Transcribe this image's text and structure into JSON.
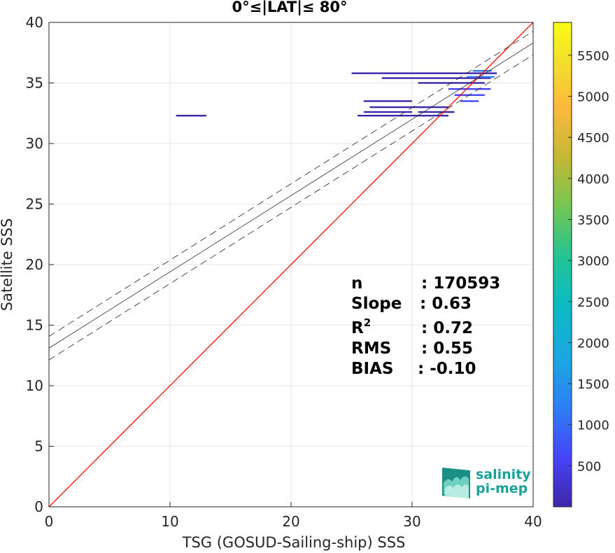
{
  "chart_data": {
    "type": "scatter",
    "title": "0°≤|LAT|≤ 80°",
    "xlabel": "TSG (GOSUD-Sailing-ship) SSS",
    "ylabel": "Satellite SSS",
    "xlim": [
      0,
      40
    ],
    "ylim": [
      0,
      40
    ],
    "xticks": [
      "0",
      "10",
      "20",
      "30",
      "40"
    ],
    "yticks": [
      "0",
      "5",
      "10",
      "15",
      "20",
      "25",
      "30",
      "35",
      "40"
    ],
    "grid": true,
    "density_points": [
      {
        "x": 25.0,
        "y": 35.8,
        "x2": 37.0,
        "count": 150
      },
      {
        "x": 27.5,
        "y": 35.4,
        "x2": 36.5,
        "count": 250
      },
      {
        "x": 30.5,
        "y": 35.0,
        "x2": 36.0,
        "count": 300
      },
      {
        "x": 33.0,
        "y": 34.5,
        "x2": 36.5,
        "count": 600
      },
      {
        "x": 33.5,
        "y": 34.0,
        "x2": 36.0,
        "count": 900
      },
      {
        "x": 34.0,
        "y": 33.5,
        "x2": 35.5,
        "count": 700
      },
      {
        "x": 34.5,
        "y": 35.5,
        "x2": 36.8,
        "count": 1200
      },
      {
        "x": 35.0,
        "y": 36.0,
        "x2": 36.6,
        "count": 1500
      },
      {
        "x": 26.0,
        "y": 33.5,
        "x2": 30.0,
        "count": 150
      },
      {
        "x": 26.5,
        "y": 33.0,
        "x2": 33.0,
        "count": 150
      },
      {
        "x": 26.0,
        "y": 32.6,
        "x2": 30.0,
        "count": 150
      },
      {
        "x": 30.5,
        "y": 32.6,
        "x2": 33.5,
        "count": 150
      },
      {
        "x": 25.5,
        "y": 32.3,
        "x2": 33.0,
        "count": 150
      },
      {
        "x": 10.5,
        "y": 32.3,
        "x2": 13.0,
        "count": 120
      }
    ],
    "reference_line": {
      "slope": 1,
      "intercept": 0,
      "color": "#ff0000"
    },
    "fit_line": {
      "slope": 0.63,
      "intercept": 13.1,
      "band": 0.97
    },
    "colorbar": {
      "ticks": [
        "500",
        "1000",
        "1500",
        "2000",
        "2500",
        "3000",
        "3500",
        "4000",
        "4500",
        "5000",
        "5500"
      ],
      "range": [
        0,
        5900
      ],
      "colormap": [
        "#3e26a8",
        "#4743f8",
        "#2f7cf6",
        "#1ca5e3",
        "#0bbcc1",
        "#26c392",
        "#76c653",
        "#c3b834",
        "#fbb83d",
        "#f3e02c",
        "#f9fb15"
      ]
    },
    "stats": {
      "n_label": "n",
      "n_value": ": 170593",
      "slope_label": "Slope",
      "slope_value": ": 0.63",
      "r2_label": "R",
      "r2_sup": "2",
      "r2_value": ": 0.72",
      "rms_label": "RMS",
      "rms_value": ": 0.55",
      "bias_label": "BIAS",
      "bias_value": ": -0.10"
    }
  },
  "logo": {
    "line1": "salinity",
    "line2": "pi-mep"
  }
}
